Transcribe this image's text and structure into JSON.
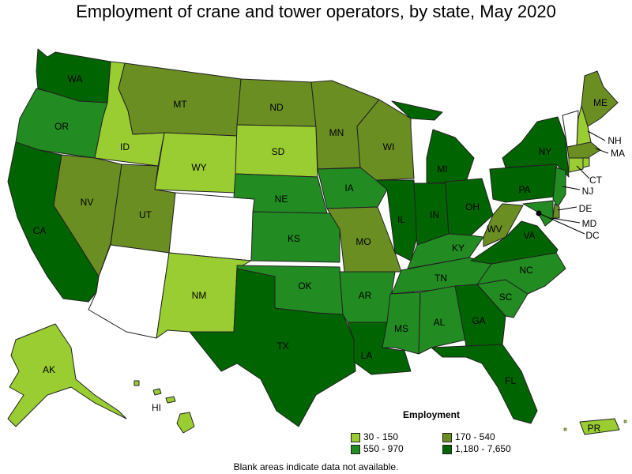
{
  "title": "Employment of crane and tower operators, by state, May 2020",
  "legend": {
    "title": "Employment",
    "bins": [
      {
        "label": "30 - 150",
        "color": "#9acd32"
      },
      {
        "label": "170 - 540",
        "color": "#6b8e23"
      },
      {
        "label": "550 - 970",
        "color": "#228b22"
      },
      {
        "label": "1,180 - 7,650",
        "color": "#006400"
      }
    ]
  },
  "footnote": "Blank areas indicate data not available.",
  "states": {
    "WA": 3,
    "OR": 2,
    "CA": 3,
    "ID": 0,
    "NV": 1,
    "MT": 1,
    "WY": 0,
    "UT": 1,
    "CO": null,
    "AZ": null,
    "NM": 0,
    "ND": 1,
    "SD": 0,
    "NE": 2,
    "KS": 2,
    "OK": 2,
    "TX": 3,
    "MN": 1,
    "IA": 2,
    "MO": 1,
    "AR": 2,
    "LA": 3,
    "WI": 1,
    "IL": 3,
    "MS": 2,
    "MI": 3,
    "IN": 3,
    "KY": 2,
    "TN": 2,
    "AL": 2,
    "OH": 3,
    "GA": 3,
    "FL": 3,
    "SC": 2,
    "NC": 2,
    "VA": 3,
    "WV": 1,
    "PA": 3,
    "NY": 3,
    "ME": 1,
    "NH": 0,
    "VT": null,
    "MA": 1,
    "CT": 0,
    "RI": 0,
    "NJ": 2,
    "DE": 1,
    "MD": 2,
    "DC": null,
    "AK": 0,
    "HI": 0,
    "PR": 0
  },
  "labels": {
    "WA": "WA",
    "OR": "OR",
    "CA": "CA",
    "ID": "ID",
    "NV": "NV",
    "MT": "MT",
    "WY": "WY",
    "UT": "UT",
    "NM": "NM",
    "ND": "ND",
    "SD": "SD",
    "NE": "NE",
    "KS": "KS",
    "OK": "OK",
    "TX": "TX",
    "MN": "MN",
    "IA": "IA",
    "MO": "MO",
    "AR": "AR",
    "LA": "LA",
    "WI": "WI",
    "IL": "IL",
    "MS": "MS",
    "MI": "MI",
    "IN": "IN",
    "KY": "KY",
    "TN": "TN",
    "AL": "AL",
    "OH": "OH",
    "GA": "GA",
    "FL": "FL",
    "SC": "SC",
    "NC": "NC",
    "VA": "VA",
    "WV": "WV",
    "PA": "PA",
    "NY": "NY",
    "ME": "ME",
    "NH": "NH",
    "MA": "MA",
    "CT": "CT",
    "NJ": "NJ",
    "DE": "DE",
    "MD": "MD",
    "DC": "DC",
    "AK": "AK",
    "HI": "HI",
    "PR": "PR"
  }
}
